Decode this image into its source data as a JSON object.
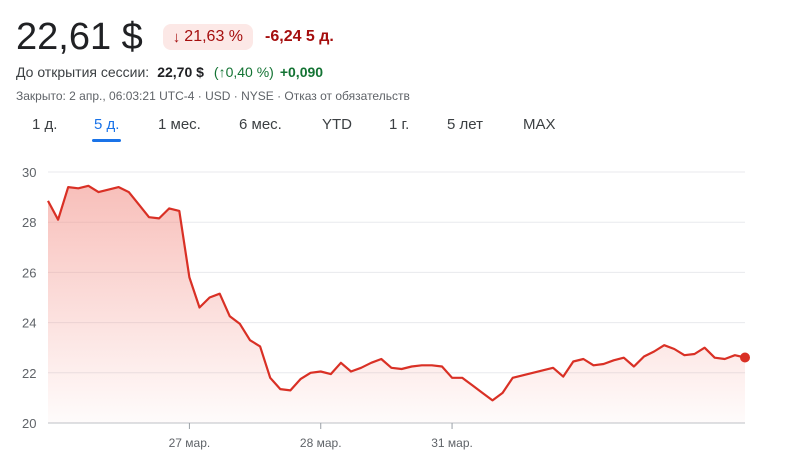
{
  "quote": {
    "price": "22,61 $",
    "change_pct": "21,63 %",
    "change_arrow_icon": "arrow-down-icon",
    "change_abs": "-6,24 5 д.",
    "negative_color": "#a50e0e",
    "positive_color": "#137333"
  },
  "premarket": {
    "label": "До открытия сессии:",
    "price": "22,70 $",
    "pct": "(↑0,40 %)",
    "abs": "+0,090"
  },
  "meta": {
    "text": "Закрыто: 2 апр., 06:03:21 UTC-4 · USD · NYSE · Отказ от обязательств"
  },
  "tabs": [
    {
      "label": "1 д.",
      "active": false
    },
    {
      "label": "5 д.",
      "active": true
    },
    {
      "label": "1 мес.",
      "active": false
    },
    {
      "label": "6 мес.",
      "active": false
    },
    {
      "label": "YTD",
      "active": false
    },
    {
      "label": "1 г.",
      "active": false
    },
    {
      "label": "5 лет",
      "active": false
    },
    {
      "label": "MAX",
      "active": false
    }
  ],
  "chart_data": {
    "type": "area",
    "ylim": [
      20,
      30
    ],
    "yticks": [
      "30",
      "28",
      "26",
      "24",
      "22",
      "20"
    ],
    "xticks": [
      {
        "label": "27 мар.",
        "index": 14
      },
      {
        "label": "28 мар.",
        "index": 27
      },
      {
        "label": "31 мар.",
        "index": 40
      }
    ],
    "line_color": "#d93025",
    "grid": true,
    "values": [
      28.85,
      28.1,
      29.4,
      29.35,
      29.45,
      29.2,
      29.3,
      29.4,
      29.2,
      28.7,
      28.2,
      28.15,
      28.55,
      28.45,
      25.8,
      24.6,
      25.0,
      25.15,
      24.25,
      23.95,
      23.3,
      23.05,
      21.8,
      21.35,
      21.3,
      21.75,
      22.0,
      22.05,
      21.95,
      22.4,
      22.05,
      22.2,
      22.4,
      22.55,
      22.2,
      22.15,
      22.25,
      22.3,
      22.3,
      22.25,
      21.8,
      21.8,
      21.5,
      21.2,
      20.9,
      21.2,
      21.8,
      21.9,
      22.0,
      22.1,
      22.2,
      21.85,
      22.45,
      22.55,
      22.3,
      22.35,
      22.5,
      22.6,
      22.25,
      22.65,
      22.85,
      23.1,
      22.95,
      22.7,
      22.75,
      23.0,
      22.6,
      22.55,
      22.7,
      22.61
    ]
  }
}
